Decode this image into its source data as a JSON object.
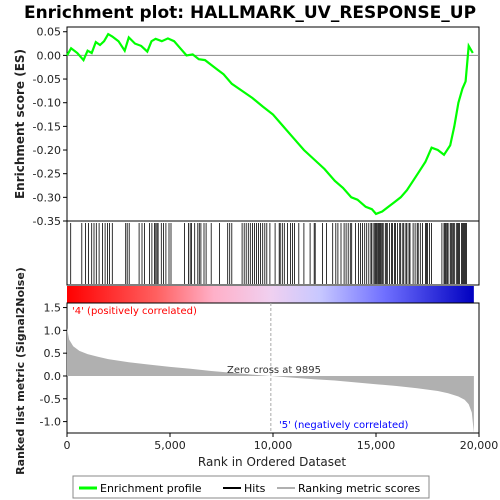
{
  "chart_data": {
    "type": "line",
    "title": "Enrichment plot: HALLMARK_UV_RESPONSE_UP",
    "top_panel": {
      "ylabel": "Enrichment score (ES)",
      "ylim": [
        -0.35,
        0.06
      ],
      "yticks": [
        "0.05",
        "0.00",
        "-0.05",
        "-0.10",
        "-0.15",
        "-0.20",
        "-0.25",
        "-0.30",
        "-0.35"
      ],
      "line_color": "#00ff00",
      "es_curve": {
        "x": [
          0,
          200,
          500,
          800,
          1000,
          1200,
          1400,
          1600,
          1800,
          2000,
          2200,
          2500,
          2800,
          3000,
          3300,
          3600,
          3900,
          4100,
          4300,
          4600,
          4900,
          5200,
          5500,
          5800,
          6100,
          6400,
          6700,
          7000,
          7300,
          7600,
          8000,
          8500,
          9000,
          9500,
          10000,
          10500,
          11000,
          11500,
          12000,
          12500,
          13000,
          13400,
          13800,
          14100,
          14500,
          14800,
          15000,
          15300,
          15600,
          15900,
          16200,
          16500,
          16800,
          17100,
          17400,
          17700,
          18000,
          18300,
          18600,
          18800,
          19000,
          19200,
          19350,
          19500,
          19700
        ],
        "y": [
          0.0,
          0.015,
          0.005,
          -0.01,
          0.01,
          0.005,
          0.028,
          0.022,
          0.03,
          0.045,
          0.04,
          0.03,
          0.01,
          0.038,
          0.025,
          0.02,
          0.008,
          0.03,
          0.035,
          0.03,
          0.036,
          0.03,
          0.015,
          0.0,
          0.002,
          -0.008,
          -0.01,
          -0.02,
          -0.03,
          -0.04,
          -0.06,
          -0.075,
          -0.09,
          -0.108,
          -0.125,
          -0.15,
          -0.175,
          -0.2,
          -0.22,
          -0.24,
          -0.265,
          -0.28,
          -0.3,
          -0.305,
          -0.32,
          -0.325,
          -0.335,
          -0.33,
          -0.32,
          -0.31,
          -0.3,
          -0.285,
          -0.265,
          -0.245,
          -0.225,
          -0.195,
          -0.2,
          -0.21,
          -0.19,
          -0.15,
          -0.1,
          -0.07,
          -0.055,
          0.02,
          0.005
        ]
      },
      "zero_line": 0.0
    },
    "hits": {
      "label": "Hits",
      "positions": [
        180,
        720,
        900,
        1050,
        1200,
        1310,
        1420,
        1560,
        1720,
        1850,
        1960,
        2070,
        2200,
        2850,
        2920,
        3020,
        3500,
        3640,
        3760,
        4000,
        4120,
        4250,
        4310,
        4370,
        4420,
        4580,
        4680,
        4800,
        4950,
        5050,
        5700,
        5900,
        5980,
        6050,
        6200,
        6350,
        6420,
        6500,
        6650,
        6750,
        7000,
        7400,
        7800,
        7900,
        8000,
        8500,
        8600,
        8700,
        8800,
        8900,
        9000,
        9100,
        9200,
        9300,
        9400,
        9500,
        9600,
        9700,
        9850,
        10100,
        10300,
        10350,
        10450,
        10550,
        10700,
        10850,
        10950,
        11050,
        11250,
        11500,
        11800,
        12000,
        12050,
        12400,
        12600,
        12900,
        13050,
        13150,
        13300,
        13450,
        13550,
        13650,
        13750,
        13820,
        14000,
        14150,
        14250,
        14350,
        14450,
        14550,
        14650,
        14750,
        14800,
        14900,
        14950,
        15000,
        15050,
        15100,
        15150,
        15200,
        15250,
        15300,
        15350,
        15450,
        15500,
        15550,
        15650,
        15750,
        15800,
        15900,
        15950,
        16050,
        16150,
        16200,
        16300,
        16350,
        16450,
        16500,
        16600,
        16650,
        16800,
        16900,
        17000,
        17050,
        17150,
        17250,
        17400,
        17450,
        17500,
        17600,
        17700,
        18200,
        18300,
        18350,
        18400,
        18450,
        18500,
        18600,
        18650,
        18700,
        18750,
        18800,
        18900,
        18950,
        19000,
        19050,
        19150,
        19200,
        19250,
        19300,
        19350,
        19400
      ]
    },
    "ranked_metric": {
      "ylabel": "Ranked list metric (Signal2Noise)",
      "ylim": [
        -1.25,
        1.6
      ],
      "yticks": [
        "1.5",
        "1.0",
        "0.5",
        "0.0",
        "-0.5",
        "-1.0"
      ],
      "fill_color": "#b0b0b0",
      "profile_x": [
        0,
        100,
        300,
        600,
        1000,
        1500,
        2000,
        3000,
        4000,
        5000,
        6000,
        7000,
        8000,
        9000,
        9895,
        11000,
        12000,
        13000,
        14000,
        15000,
        16000,
        17000,
        18000,
        18500,
        19000,
        19300,
        19500,
        19650,
        19750
      ],
      "profile_y": [
        1.05,
        0.8,
        0.65,
        0.55,
        0.48,
        0.42,
        0.37,
        0.3,
        0.25,
        0.2,
        0.16,
        0.11,
        0.07,
        0.03,
        0.0,
        -0.04,
        -0.07,
        -0.1,
        -0.14,
        -0.18,
        -0.22,
        -0.27,
        -0.33,
        -0.38,
        -0.45,
        -0.52,
        -0.62,
        -0.8,
        -1.25
      ],
      "zero_cross_label": "Zero cross at 9895",
      "zero_cross": 9895,
      "pos_label": "'4' (positively correlated)",
      "neg_label": "'5' (negatively correlated)",
      "pos_color": "#ff0000",
      "neg_color": "#0000ff"
    },
    "x_axis": {
      "label": "Rank in Ordered Dataset",
      "xlim": [
        0,
        20000
      ],
      "xticks": [
        "0",
        "5,000",
        "10,000",
        "15,000",
        "20,000"
      ],
      "n_genes": 19750
    },
    "legend": {
      "placement": "bottom",
      "items": [
        {
          "label": "Enrichment profile",
          "color": "#00ff00"
        },
        {
          "label": "Hits",
          "color": "#000000"
        },
        {
          "label": "Ranking metric scores",
          "color": "#b0b0b0"
        }
      ]
    }
  }
}
